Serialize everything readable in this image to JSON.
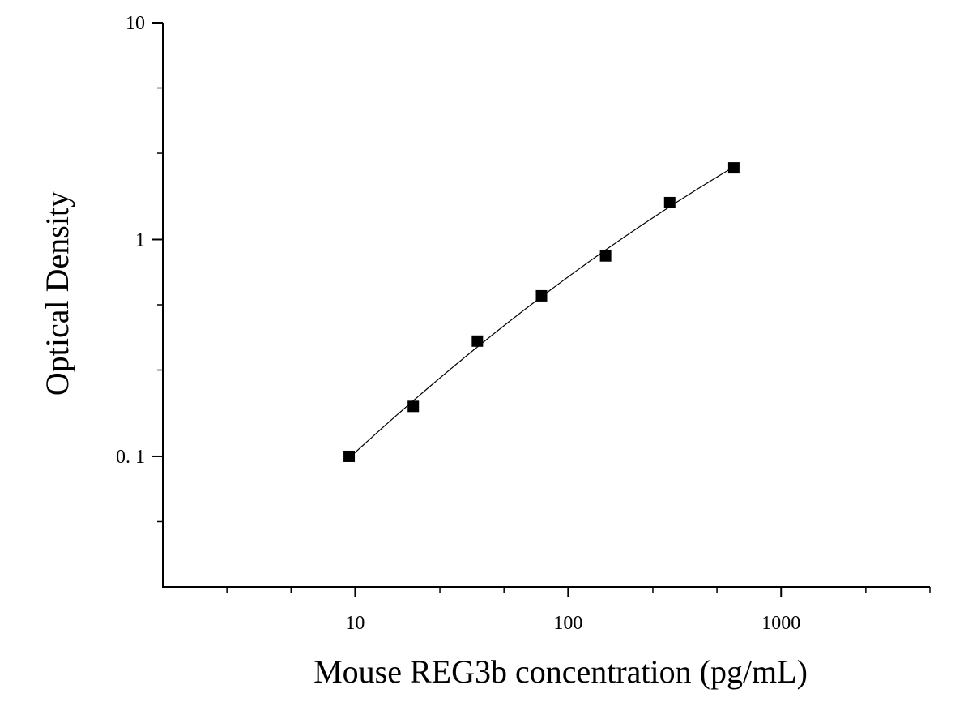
{
  "chart_data": {
    "type": "scatter",
    "title": "",
    "xlabel": "Mouse REG3b concentration (pg/mL)",
    "ylabel": "Optical Density",
    "x_scale": "log",
    "y_scale": "log",
    "xlim": [
      1.25,
      5000
    ],
    "ylim": [
      0.025,
      10
    ],
    "x_tick_labels": [
      "10",
      "100",
      "1000"
    ],
    "y_tick_labels": [
      "0. 1",
      "1",
      "10"
    ],
    "grid": false,
    "legend": "none",
    "marker": "square",
    "fit_curve": true,
    "colors": {
      "marker": "#000000",
      "curve": "#000000",
      "axis": "#000000"
    },
    "series": [
      {
        "x": [
          9.375,
          18.75,
          37.5,
          75,
          150,
          300,
          600
        ],
        "y": [
          0.1,
          0.17,
          0.34,
          0.55,
          0.84,
          1.48,
          2.14
        ]
      }
    ]
  }
}
